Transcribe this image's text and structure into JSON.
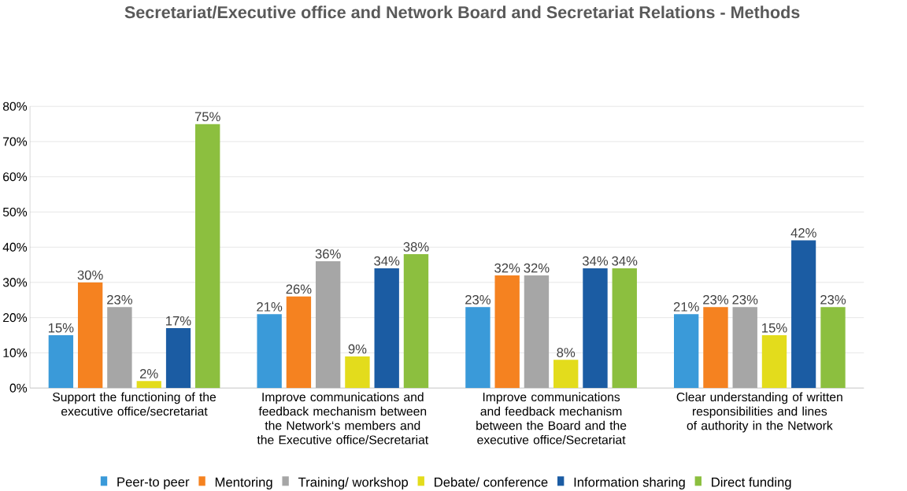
{
  "chart_data": {
    "type": "bar",
    "title": "Secretariat/Executive office and Network Board and Secretariat Relations - Methods",
    "categories": [
      "Support the functioning of the executive office/secretariat",
      "Improve communications and feedback mechanism between the Network‘s members and the Executive office/Secretariat",
      "Improve communications and feedback mechanism between the Board and the executive office/Secretariat",
      "Clear understanding of written responsibilities and lines of authority in the Network"
    ],
    "series": [
      {
        "name": "Peer-to peer",
        "color": "#3a9ad9",
        "values": [
          15,
          21,
          23,
          21
        ],
        "value_labels": [
          "15%",
          "21%",
          "23%",
          "21%"
        ]
      },
      {
        "name": "Mentoring",
        "color": "#f58220",
        "values": [
          30,
          26,
          32,
          23
        ],
        "value_labels": [
          "30%",
          "26%",
          "32%",
          "23%"
        ]
      },
      {
        "name": "Training/ workshop",
        "color": "#a6a6a6",
        "values": [
          23,
          36,
          32,
          23
        ],
        "value_labels": [
          "23%",
          "36%",
          "32%",
          "23%"
        ]
      },
      {
        "name": "Debate/ conference",
        "color": "#e3dc1c",
        "values": [
          2,
          9,
          8,
          15
        ],
        "value_labels": [
          "2%",
          "9%",
          "8%",
          "15%"
        ]
      },
      {
        "name": "Information sharing",
        "color": "#1b5ca3",
        "values": [
          17,
          34,
          34,
          42
        ],
        "value_labels": [
          "17%",
          "34%",
          "34%",
          "42%"
        ]
      },
      {
        "name": "Direct funding",
        "color": "#8cbf3f",
        "values": [
          75,
          38,
          34,
          23
        ],
        "value_labels": [
          "75%",
          "38%",
          "34%",
          "23%"
        ]
      }
    ],
    "ylim": [
      0,
      80
    ],
    "yticks": [
      {
        "value": 0,
        "label": "0%"
      },
      {
        "value": 10,
        "label": "10%"
      },
      {
        "value": 20,
        "label": "20%"
      },
      {
        "value": 30,
        "label": "30%"
      },
      {
        "value": 40,
        "label": "40%"
      },
      {
        "value": 50,
        "label": "50%"
      },
      {
        "value": 60,
        "label": "60%"
      },
      {
        "value": 70,
        "label": "70%"
      },
      {
        "value": 80,
        "label": "80%"
      }
    ],
    "grid": "y",
    "legend": "bottom"
  }
}
